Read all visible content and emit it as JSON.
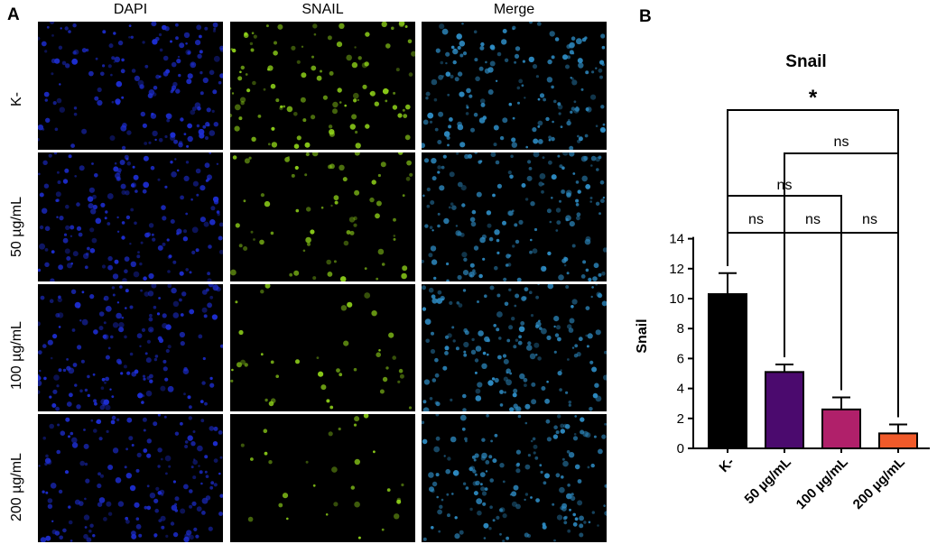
{
  "figure": {
    "panel_a_label": "A",
    "panel_b_label": "B",
    "columns": [
      "DAPI",
      "SNAIL",
      "Merge"
    ],
    "rows": [
      "K-",
      "50 µg/mL",
      "100 µg/mL",
      "200 µg/mL"
    ],
    "channel_colors": {
      "DAPI": "#1e2fd8",
      "SNAIL": "#8fd21a",
      "Merge": "#2f8fc8"
    }
  },
  "chart_data": {
    "type": "bar",
    "title": "Snail",
    "ylabel": "Snail",
    "xlabel": "",
    "categories": [
      "K-",
      "50 µg/mL",
      "100 µg/mL",
      "200 µg/mL"
    ],
    "values": [
      10.3,
      5.1,
      2.6,
      1.0
    ],
    "errors": [
      1.4,
      0.5,
      0.8,
      0.6
    ],
    "colors": [
      "#000000",
      "#4b0a6e",
      "#b0206a",
      "#f05a2a"
    ],
    "ylim": [
      0,
      15
    ],
    "yticks": [
      0,
      2,
      4,
      6,
      8,
      10,
      12,
      14
    ],
    "grid": false,
    "significance": [
      {
        "from": 0,
        "to": 1,
        "label": "ns"
      },
      {
        "from": 1,
        "to": 2,
        "label": "ns"
      },
      {
        "from": 2,
        "to": 3,
        "label": "ns"
      },
      {
        "from": 0,
        "to": 2,
        "label": "ns"
      },
      {
        "from": 1,
        "to": 3,
        "label": "ns"
      },
      {
        "from": 0,
        "to": 3,
        "label": "*"
      }
    ]
  }
}
